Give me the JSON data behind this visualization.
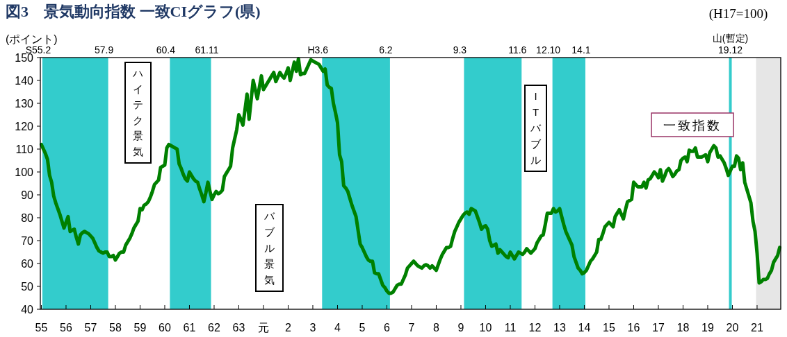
{
  "chart_data": {
    "type": "line",
    "title": "図3　景気動向指数 一致CIグラフ(県)",
    "ylabel": "(ポイント)",
    "ylim": [
      40,
      150
    ],
    "yticks": [
      40,
      50,
      60,
      70,
      80,
      90,
      100,
      110,
      120,
      130,
      140,
      150
    ],
    "categories": [
      "55",
      null,
      null,
      null,
      null,
      null,
      null,
      null,
      null,
      null,
      null,
      null,
      "56",
      null,
      null,
      null,
      null,
      null,
      null,
      null,
      null,
      null,
      null,
      null,
      "57",
      null,
      null,
      null,
      null,
      null,
      null,
      null,
      null,
      null,
      null,
      null,
      "58",
      null,
      null,
      null,
      null,
      null,
      null,
      null,
      null,
      null,
      null,
      null,
      "59",
      null,
      null,
      null,
      null,
      null,
      null,
      null,
      null,
      null,
      null,
      null,
      "60",
      null,
      null,
      null,
      null,
      null,
      null,
      null,
      null,
      null,
      null,
      null,
      "61",
      null,
      null,
      null,
      null,
      null,
      null,
      null,
      null,
      null,
      null,
      null,
      "62",
      null,
      null,
      null,
      null,
      null,
      null,
      null,
      null,
      null,
      null,
      null,
      "63",
      null,
      null,
      null,
      null,
      null,
      null,
      null,
      null,
      null,
      null,
      null,
      "元",
      null,
      null,
      null,
      null,
      null,
      null,
      null,
      null,
      null,
      null,
      null,
      "2",
      null,
      null,
      null,
      null,
      null,
      null,
      null,
      null,
      null,
      null,
      null,
      "3",
      null,
      null,
      null,
      null,
      null,
      null,
      null,
      null,
      null,
      null,
      null,
      "4",
      null,
      null,
      null,
      null,
      null,
      null,
      null,
      null,
      null,
      null,
      null,
      "5",
      null,
      null,
      null,
      null,
      null,
      null,
      null,
      null,
      null,
      null,
      null,
      "6",
      null,
      null,
      null,
      null,
      null,
      null,
      null,
      null,
      null,
      null,
      null,
      "7",
      null,
      null,
      null,
      null,
      null,
      null,
      null,
      null,
      null,
      null,
      null,
      "8",
      null,
      null,
      null,
      null,
      null,
      null,
      null,
      null,
      null,
      null,
      null,
      "9",
      null,
      null,
      null,
      null,
      null,
      null,
      null,
      null,
      null,
      null,
      null,
      "10",
      null,
      null,
      null,
      null,
      null,
      null,
      null,
      null,
      null,
      null,
      null,
      "11",
      null,
      null,
      null,
      null,
      null,
      null,
      null,
      null,
      null,
      null,
      null,
      "12",
      null,
      null,
      null,
      null,
      null,
      null,
      null,
      null,
      null,
      null,
      null,
      "13",
      null,
      null,
      null,
      null,
      null,
      null,
      null,
      null,
      null,
      null,
      null,
      "14",
      null,
      null,
      null,
      null,
      null,
      null,
      null,
      null,
      null,
      null,
      null,
      "15",
      null,
      null,
      null,
      null,
      null,
      null,
      null,
      null,
      null,
      null,
      null,
      "16",
      null,
      null,
      null,
      null,
      null,
      null,
      null,
      null,
      null,
      null,
      null,
      "17",
      null,
      null,
      null,
      null,
      null,
      null,
      null,
      null,
      null,
      null,
      null,
      "18",
      null,
      null,
      null,
      null,
      null,
      null,
      null,
      null,
      null,
      null,
      null,
      "19",
      null,
      null,
      null,
      null,
      null,
      null,
      null,
      null,
      null,
      null,
      null,
      "20",
      null,
      null,
      null,
      null,
      null,
      null,
      null,
      null,
      null,
      null,
      null,
      "21",
      null,
      null,
      null,
      null,
      null,
      null,
      null,
      null,
      null,
      null,
      null
    ],
    "series": [
      {
        "name": "一致指数",
        "color": "#008000",
        "values": [
          112,
          110,
          108,
          105.5,
          98.5,
          95.5,
          89.5,
          86.5,
          84,
          81.5,
          78.5,
          75.5,
          78,
          80.5,
          74,
          74.5,
          75,
          71.5,
          68.5,
          72.5,
          73.5,
          74,
          73.5,
          73,
          72,
          71,
          69,
          67,
          65.5,
          65,
          64.5,
          65,
          65,
          63,
          63,
          63.5,
          61.5,
          63,
          64.5,
          65,
          65,
          68,
          69.5,
          71,
          73,
          75.5,
          77,
          78.5,
          84,
          83.5,
          85.5,
          86,
          87,
          89,
          91.5,
          94.5,
          95.5,
          96.5,
          102,
          102.5,
          103,
          110.5,
          112,
          111.5,
          111,
          110.5,
          110,
          103.5,
          101.5,
          99,
          97,
          96,
          100,
          98.5,
          97,
          96,
          95.5,
          92.5,
          90,
          87,
          91,
          95.5,
          91.5,
          88,
          90,
          91.5,
          90.5,
          91,
          92,
          98,
          99.5,
          101,
          102.5,
          110.5,
          114.5,
          118.5,
          125,
          123,
          120.5,
          127,
          134,
          123,
          131.5,
          140,
          136,
          132,
          137,
          142,
          136,
          137.5,
          139,
          140.5,
          142,
          143.5,
          139.5,
          141.5,
          143.5,
          142,
          141,
          143,
          145.5,
          140,
          144,
          148,
          144,
          149.5,
          142.5,
          143,
          143,
          145,
          147,
          149,
          148.5,
          148,
          147.5,
          147,
          145.5,
          144,
          145,
          138,
          137,
          136.5,
          130,
          126,
          121.5,
          107.5,
          104.5,
          94,
          93,
          91.5,
          88.5,
          85.5,
          83,
          80.5,
          74.5,
          68.5,
          67,
          65,
          63,
          61.5,
          61,
          61,
          56,
          55.5,
          55.5,
          53,
          50.5,
          49.5,
          48,
          47,
          47,
          47.5,
          49,
          50.5,
          51,
          51,
          53,
          55,
          58,
          59,
          60,
          61,
          60,
          59,
          58.5,
          58,
          59,
          59.5,
          59,
          58,
          59,
          58,
          57,
          59.5,
          62,
          64,
          65.5,
          67,
          67,
          67.5,
          71,
          74,
          76,
          78,
          79.5,
          81,
          82,
          82.5,
          81.5,
          84,
          83.5,
          83,
          80.5,
          78,
          75,
          76,
          76.5,
          75,
          70,
          67.5,
          68,
          68.5,
          64.5,
          66,
          65,
          64,
          63,
          62.5,
          65,
          63.5,
          62,
          63.5,
          65,
          64.5,
          64,
          65,
          66.5,
          65.5,
          64.5,
          65.5,
          66.5,
          69,
          70.5,
          72,
          72.5,
          77,
          82,
          82,
          82,
          84,
          82.5,
          83,
          84,
          80.5,
          77,
          74,
          72,
          70,
          68,
          63,
          60.5,
          58,
          57,
          55.5,
          56,
          57,
          59,
          61,
          62,
          63.5,
          65,
          70.5,
          70.5,
          73,
          76,
          77,
          78,
          77,
          76,
          80.5,
          82,
          83.5,
          81.5,
          79.5,
          83.5,
          87,
          87.5,
          88,
          95.5,
          94.5,
          93.5,
          93.5,
          93.5,
          95.5,
          93,
          96.5,
          97,
          98.5,
          100,
          99,
          97.5,
          101,
          96,
          98,
          100.5,
          101.5,
          100,
          98,
          99,
          100.5,
          101,
          105,
          106,
          106.5,
          104.5,
          109.5,
          109,
          109,
          110.5,
          106.5,
          106.5,
          106.5,
          107,
          107.5,
          104.5,
          108.5,
          110,
          111.5,
          110.5,
          106.5,
          107,
          105.5,
          104,
          101.5,
          98.5,
          100.5,
          102.5,
          102.5,
          107,
          106,
          101,
          104,
          95.5,
          92.5,
          89.5,
          86.5,
          78.5,
          74,
          64.5,
          51.5,
          52,
          53,
          53,
          53.5,
          55.5,
          57,
          60.5,
          62,
          63.5,
          67
        ]
      }
    ],
    "marker": "none",
    "line_style": "solid",
    "annotations": [
      "(H17=100)",
      "ハイテク景気",
      "バブル景気",
      "ITバブル",
      "山(暫定)",
      "19.12",
      "S55.2",
      "57.9",
      "60.4",
      "61.11",
      "H3.6",
      "6.2",
      "9.3",
      "11.6",
      "12.10",
      "14.1"
    ]
  }
}
